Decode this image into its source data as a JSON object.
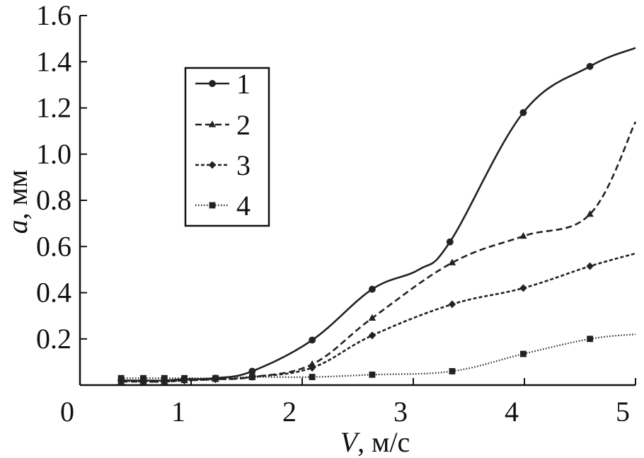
{
  "chart_data": {
    "type": "line",
    "xlabel": {
      "var": "V",
      "unit": ", м/с"
    },
    "ylabel": {
      "var": "a",
      "unit": ", мм"
    },
    "xlim": [
      0,
      5
    ],
    "ylim": [
      0,
      1.6
    ],
    "xticks": [
      {
        "v": 0,
        "label": "0"
      },
      {
        "v": 1,
        "label": "1"
      },
      {
        "v": 2,
        "label": "2"
      },
      {
        "v": 3,
        "label": "3"
      },
      {
        "v": 4,
        "label": "4"
      },
      {
        "v": 5,
        "label": "5"
      }
    ],
    "yticks": [
      {
        "v": 0.2,
        "label": "0.2"
      },
      {
        "v": 0.4,
        "label": "0.4"
      },
      {
        "v": 0.6,
        "label": "0.6"
      },
      {
        "v": 0.8,
        "label": "0.8"
      },
      {
        "v": 1.0,
        "label": "1.0"
      },
      {
        "v": 1.2,
        "label": "1.2"
      },
      {
        "v": 1.4,
        "label": "1.4"
      },
      {
        "v": 1.6,
        "label": "1.6"
      }
    ],
    "grid": false,
    "legend_position": "upper-left",
    "series": [
      {
        "name": "1",
        "marker": "circle",
        "dash": "solid",
        "color": "#222222",
        "points": [
          [
            0.37,
            0.02
          ],
          [
            0.57,
            0.02
          ],
          [
            0.76,
            0.02
          ],
          [
            0.94,
            0.025
          ],
          [
            1.22,
            0.03
          ],
          [
            1.55,
            0.06
          ],
          [
            2.09,
            0.195
          ],
          [
            2.63,
            0.415
          ],
          [
            3.05,
            0.5
          ],
          [
            3.33,
            0.62
          ],
          [
            3.99,
            1.18
          ],
          [
            4.59,
            1.38
          ],
          [
            5.0,
            1.46
          ]
        ],
        "markers_at": [
          0,
          1,
          2,
          3,
          4,
          5,
          6,
          7,
          9,
          10,
          11
        ]
      },
      {
        "name": "2",
        "marker": "triangle",
        "dash": "dashed",
        "color": "#222222",
        "points": [
          [
            0.37,
            0.015
          ],
          [
            0.57,
            0.015
          ],
          [
            0.76,
            0.015
          ],
          [
            0.94,
            0.02
          ],
          [
            1.22,
            0.025
          ],
          [
            1.55,
            0.035
          ],
          [
            2.09,
            0.09
          ],
          [
            2.63,
            0.29
          ],
          [
            3.35,
            0.53
          ],
          [
            3.99,
            0.645
          ],
          [
            4.59,
            0.74
          ],
          [
            5.0,
            1.14
          ]
        ],
        "markers_at": [
          0,
          1,
          2,
          3,
          4,
          5,
          6,
          7,
          8,
          9,
          10
        ]
      },
      {
        "name": "3",
        "marker": "diamond",
        "dash": "short-dashed",
        "color": "#222222",
        "points": [
          [
            0.37,
            0.02
          ],
          [
            0.57,
            0.015
          ],
          [
            0.76,
            0.015
          ],
          [
            0.94,
            0.02
          ],
          [
            1.22,
            0.025
          ],
          [
            1.55,
            0.035
          ],
          [
            2.09,
            0.075
          ],
          [
            2.63,
            0.215
          ],
          [
            3.35,
            0.35
          ],
          [
            3.99,
            0.42
          ],
          [
            4.59,
            0.515
          ],
          [
            5.0,
            0.57
          ]
        ],
        "markers_at": [
          0,
          1,
          2,
          3,
          4,
          5,
          6,
          7,
          8,
          9,
          10
        ]
      },
      {
        "name": "4",
        "marker": "square",
        "dash": "dotted",
        "color": "#222222",
        "points": [
          [
            0.37,
            0.03
          ],
          [
            0.57,
            0.03
          ],
          [
            0.76,
            0.03
          ],
          [
            0.94,
            0.03
          ],
          [
            1.22,
            0.03
          ],
          [
            1.55,
            0.035
          ],
          [
            2.09,
            0.035
          ],
          [
            2.63,
            0.045
          ],
          [
            3.35,
            0.06
          ],
          [
            3.99,
            0.135
          ],
          [
            4.59,
            0.2
          ],
          [
            5.0,
            0.22
          ]
        ],
        "markers_at": [
          0,
          1,
          2,
          3,
          4,
          5,
          6,
          7,
          8,
          9,
          10
        ]
      }
    ]
  }
}
